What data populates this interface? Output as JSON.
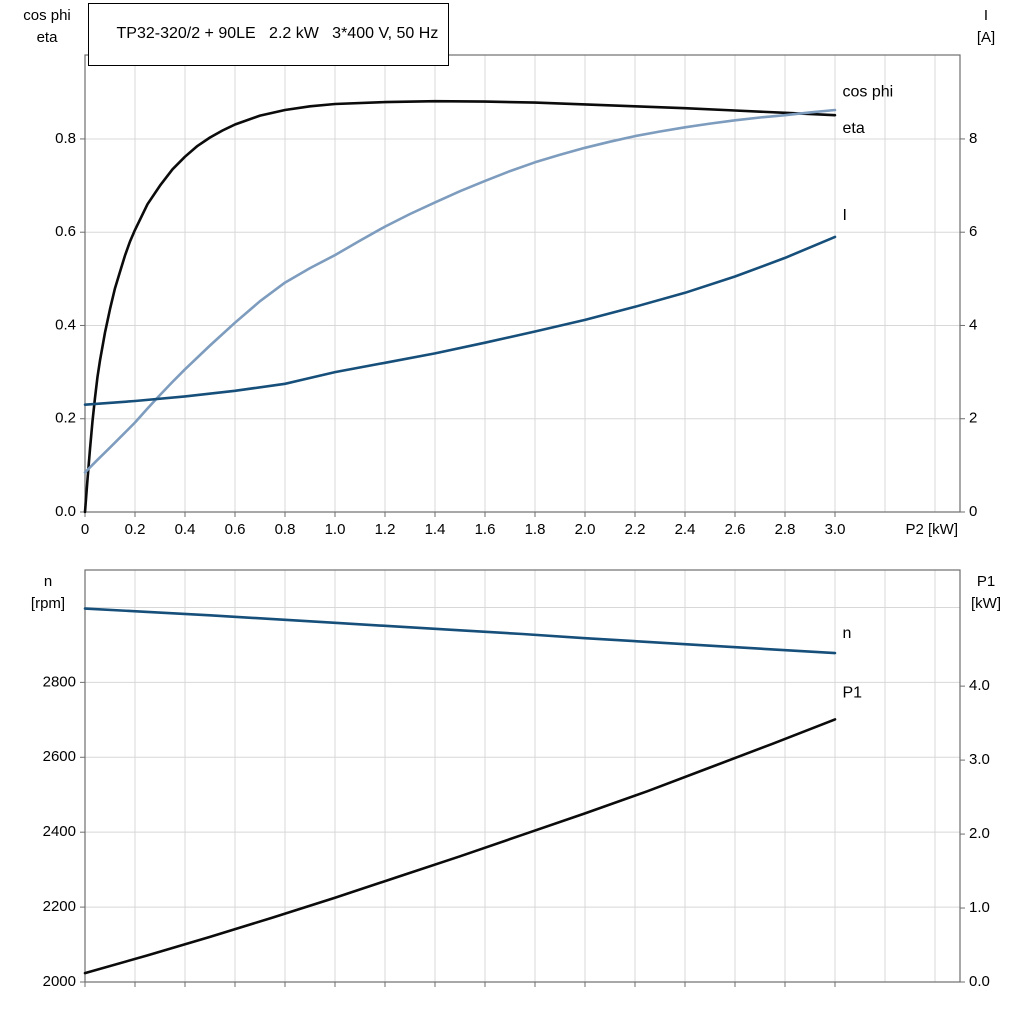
{
  "chart_data": [
    {
      "type": "line",
      "title": "TP32-320/2 + 90LE   2.2 kW   3*400 V, 50 Hz",
      "x_axis": {
        "label": "P2 [kW]",
        "min": 0,
        "max": 3.5,
        "grid_step": 0.2,
        "ticks": [
          0,
          0.2,
          0.4,
          0.6,
          0.8,
          1.0,
          1.2,
          1.4,
          1.6,
          1.8,
          2.0,
          2.2,
          2.4,
          2.6,
          2.8,
          3.0
        ],
        "tick_labels": [
          "0",
          "0.2",
          "0.4",
          "0.6",
          "0.8",
          "1.0",
          "1.2",
          "1.4",
          "1.6",
          "1.8",
          "2.0",
          "2.2",
          "2.4",
          "2.6",
          "2.8",
          "3.0"
        ]
      },
      "y_left": {
        "title_lines": [
          "cos phi",
          "eta"
        ],
        "min": 0,
        "max": 0.98,
        "grid_step": 0.2,
        "ticks": [
          0,
          0.2,
          0.4,
          0.6,
          0.8
        ],
        "tick_labels": [
          "0.0",
          "0.2",
          "0.4",
          "0.6",
          "0.8"
        ]
      },
      "y_right": {
        "title_lines": [
          "I",
          "[A]"
        ],
        "min": 0,
        "max": 9.8,
        "ticks": [
          0,
          2,
          4,
          6,
          8
        ],
        "tick_labels": [
          "0",
          "2",
          "4",
          "6",
          "8"
        ]
      },
      "series": [
        {
          "name": "eta",
          "axis": "left",
          "color": "#0b0b0b",
          "points": [
            [
              0,
              0
            ],
            [
              0.01,
              0.07
            ],
            [
              0.02,
              0.135
            ],
            [
              0.03,
              0.195
            ],
            [
              0.04,
              0.245
            ],
            [
              0.05,
              0.29
            ],
            [
              0.06,
              0.325
            ],
            [
              0.07,
              0.355
            ],
            [
              0.08,
              0.385
            ],
            [
              0.09,
              0.41
            ],
            [
              0.1,
              0.435
            ],
            [
              0.12,
              0.48
            ],
            [
              0.14,
              0.515
            ],
            [
              0.16,
              0.55
            ],
            [
              0.18,
              0.58
            ],
            [
              0.2,
              0.605
            ],
            [
              0.25,
              0.66
            ],
            [
              0.3,
              0.7
            ],
            [
              0.35,
              0.735
            ],
            [
              0.4,
              0.762
            ],
            [
              0.45,
              0.785
            ],
            [
              0.5,
              0.803
            ],
            [
              0.55,
              0.818
            ],
            [
              0.6,
              0.831
            ],
            [
              0.7,
              0.85
            ],
            [
              0.8,
              0.862
            ],
            [
              0.9,
              0.87
            ],
            [
              1.0,
              0.875
            ],
            [
              1.2,
              0.879
            ],
            [
              1.4,
              0.881
            ],
            [
              1.6,
              0.88
            ],
            [
              1.8,
              0.878
            ],
            [
              2.0,
              0.874
            ],
            [
              2.2,
              0.87
            ],
            [
              2.4,
              0.866
            ],
            [
              2.6,
              0.861
            ],
            [
              2.8,
              0.856
            ],
            [
              3.0,
              0.851
            ]
          ]
        },
        {
          "name": "cos phi",
          "axis": "left",
          "color": "#7d9cbe",
          "points": [
            [
              0,
              0.085
            ],
            [
              0.05,
              0.112
            ],
            [
              0.1,
              0.138
            ],
            [
              0.15,
              0.165
            ],
            [
              0.2,
              0.192
            ],
            [
              0.25,
              0.222
            ],
            [
              0.3,
              0.251
            ],
            [
              0.35,
              0.279
            ],
            [
              0.4,
              0.306
            ],
            [
              0.5,
              0.357
            ],
            [
              0.6,
              0.406
            ],
            [
              0.7,
              0.452
            ],
            [
              0.8,
              0.492
            ],
            [
              0.9,
              0.523
            ],
            [
              1.0,
              0.551
            ],
            [
              1.1,
              0.582
            ],
            [
              1.2,
              0.612
            ],
            [
              1.3,
              0.639
            ],
            [
              1.4,
              0.664
            ],
            [
              1.5,
              0.688
            ],
            [
              1.6,
              0.71
            ],
            [
              1.7,
              0.731
            ],
            [
              1.8,
              0.75
            ],
            [
              1.9,
              0.766
            ],
            [
              2.0,
              0.781
            ],
            [
              2.1,
              0.794
            ],
            [
              2.2,
              0.806
            ],
            [
              2.3,
              0.816
            ],
            [
              2.4,
              0.825
            ],
            [
              2.5,
              0.833
            ],
            [
              2.6,
              0.84
            ],
            [
              2.7,
              0.846
            ],
            [
              2.8,
              0.851
            ],
            [
              2.9,
              0.857
            ],
            [
              3.0,
              0.862
            ]
          ]
        },
        {
          "name": "I",
          "axis": "right",
          "color": "#174f7b",
          "points": [
            [
              0,
              2.3
            ],
            [
              0.2,
              2.38
            ],
            [
              0.4,
              2.48
            ],
            [
              0.6,
              2.6
            ],
            [
              0.8,
              2.75
            ],
            [
              1.0,
              3.0
            ],
            [
              1.2,
              3.2
            ],
            [
              1.4,
              3.4
            ],
            [
              1.6,
              3.63
            ],
            [
              1.8,
              3.87
            ],
            [
              2.0,
              4.12
            ],
            [
              2.2,
              4.4
            ],
            [
              2.4,
              4.7
            ],
            [
              2.6,
              5.05
            ],
            [
              2.8,
              5.45
            ],
            [
              3.0,
              5.9
            ]
          ]
        }
      ],
      "annotations": [
        {
          "text": "cos phi",
          "color": "#7d9cbe",
          "axis": "left",
          "x": 3.03,
          "y": 0.9
        },
        {
          "text": "eta",
          "color": "#0b0b0b",
          "axis": "left",
          "x": 3.03,
          "y": 0.822
        },
        {
          "text": "I",
          "color": "#174f7b",
          "axis": "right",
          "x": 3.03,
          "y": 6.35
        }
      ]
    },
    {
      "type": "line",
      "title": "",
      "x_axis": {
        "label": "",
        "min": 0,
        "max": 3.5,
        "grid_step": 0.2,
        "ticks": [
          0,
          0.2,
          0.4,
          0.6,
          0.8,
          1.0,
          1.2,
          1.4,
          1.6,
          1.8,
          2.0,
          2.2,
          2.4,
          2.6,
          2.8,
          3.0
        ],
        "tick_labels": []
      },
      "y_left": {
        "title_lines": [
          "n",
          "[rpm]"
        ],
        "min": 2000,
        "max": 3100,
        "grid_step": 200,
        "ticks": [
          2000,
          2200,
          2400,
          2600,
          2800
        ],
        "tick_labels": [
          "2000",
          "2200",
          "2400",
          "2600",
          "2800"
        ]
      },
      "y_right": {
        "title_lines": [
          "P1",
          "[kW]"
        ],
        "min": 0,
        "max": 5.57,
        "ticks": [
          0,
          1,
          2,
          3,
          4
        ],
        "tick_labels": [
          "0.0",
          "1.0",
          "2.0",
          "3.0",
          "4.0"
        ]
      },
      "series": [
        {
          "name": "n",
          "axis": "left",
          "color": "#174f7b",
          "points": [
            [
              0,
              2997
            ],
            [
              0.25,
              2988
            ],
            [
              0.5,
              2979
            ],
            [
              0.75,
              2969
            ],
            [
              1.0,
              2959
            ],
            [
              1.25,
              2949
            ],
            [
              1.5,
              2939
            ],
            [
              1.75,
              2929
            ],
            [
              2.0,
              2918
            ],
            [
              2.25,
              2908
            ],
            [
              2.5,
              2898
            ],
            [
              2.75,
              2888
            ],
            [
              3.0,
              2878
            ]
          ]
        },
        {
          "name": "P1",
          "axis": "right",
          "color": "#0b0b0b",
          "points": [
            [
              0,
              0.12
            ],
            [
              0.25,
              0.36
            ],
            [
              0.5,
              0.61
            ],
            [
              0.75,
              0.87
            ],
            [
              1.0,
              1.14
            ],
            [
              1.25,
              1.42
            ],
            [
              1.5,
              1.7
            ],
            [
              1.75,
              1.99
            ],
            [
              2.0,
              2.28
            ],
            [
              2.25,
              2.58
            ],
            [
              2.5,
              2.9
            ],
            [
              2.75,
              3.22
            ],
            [
              3.0,
              3.55
            ]
          ]
        }
      ],
      "annotations": [
        {
          "text": "n",
          "color": "#174f7b",
          "axis": "left",
          "x": 3.03,
          "y": 2930
        },
        {
          "text": "P1",
          "color": "#0b0b0b",
          "axis": "right",
          "x": 3.03,
          "y": 3.9
        }
      ]
    }
  ],
  "style_colors": {
    "grid": "#d8d8d8",
    "frame": "#6e6e6e",
    "tick": "#6e6e6e",
    "text": "#000000"
  }
}
